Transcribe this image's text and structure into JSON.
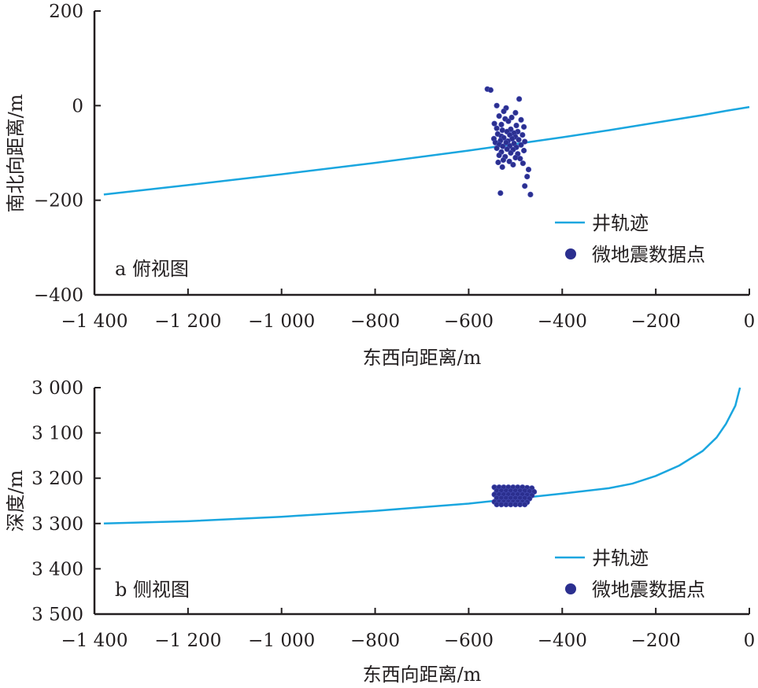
{
  "chart_data": [
    {
      "type": "scatter",
      "panel_label": "a 俯视图",
      "xlabel": "东西向距离/m",
      "ylabel": "南北向距离/m",
      "xlim": [
        -1400,
        0
      ],
      "ylim": [
        -400,
        200
      ],
      "y_inverted": false,
      "xticks": [
        -1400,
        -1200,
        -1000,
        -800,
        -600,
        -400,
        -200,
        0
      ],
      "xtick_labels": [
        "−1 400",
        "−1 200",
        "−1 000",
        "−800",
        "−600",
        "−400",
        "−200",
        "0"
      ],
      "yticks": [
        200,
        0,
        -200,
        -400
      ],
      "ytick_labels": [
        "200",
        "0",
        "−200",
        "−400"
      ],
      "legend": {
        "position": "bottom-right",
        "entries": [
          {
            "label": "井轨迹",
            "marker": "line",
            "color": "#1aa6df"
          },
          {
            "label": "微地震数据点",
            "marker": "dot",
            "color": "#2b2f8f"
          }
        ]
      },
      "series": [
        {
          "name": "井轨迹",
          "kind": "line",
          "color": "#1aa6df",
          "x": [
            -1380,
            -1200,
            -1000,
            -800,
            -600,
            -500,
            -400,
            -300,
            -200,
            -100,
            -50,
            0
          ],
          "y": [
            -188,
            -168,
            -145,
            -121,
            -95,
            -81,
            -67,
            -52,
            -36,
            -20,
            -11,
            -3
          ]
        },
        {
          "name": "微地震数据点",
          "kind": "scatter",
          "color": "#2b2f8f",
          "x": [
            -560,
            -553,
            -492,
            -540,
            -520,
            -525,
            -500,
            -535,
            -508,
            -522,
            -488,
            -515,
            -545,
            -530,
            -498,
            -482,
            -540,
            -510,
            -528,
            -495,
            -518,
            -503,
            -538,
            -512,
            -485,
            -530,
            -500,
            -525,
            -546,
            -507,
            -493,
            -532,
            -516,
            -480,
            -543,
            -520,
            -503,
            -535,
            -488,
            -512,
            -527,
            -498,
            -540,
            -518,
            -505,
            -482,
            -530,
            -510,
            -495,
            -535,
            -522,
            -500,
            -490,
            -526,
            -513,
            -537,
            -484,
            -505,
            -528,
            -532,
            -472,
            -475,
            -480,
            -468
          ],
          "y": [
            35,
            33,
            14,
            0,
            -5,
            -12,
            -15,
            -22,
            -25,
            -28,
            -30,
            -33,
            -38,
            -40,
            -42,
            -45,
            -48,
            -50,
            -52,
            -55,
            -55,
            -58,
            -60,
            -62,
            -62,
            -65,
            -66,
            -68,
            -70,
            -70,
            -72,
            -74,
            -75,
            -76,
            -78,
            -78,
            -80,
            -82,
            -83,
            -85,
            -86,
            -88,
            -90,
            -92,
            -93,
            -95,
            -98,
            -100,
            -102,
            -105,
            -108,
            -110,
            -112,
            -115,
            -118,
            -120,
            -122,
            -125,
            -130,
            -185,
            -135,
            -150,
            -170,
            -188
          ]
        }
      ]
    },
    {
      "type": "scatter",
      "panel_label": "b 侧视图",
      "xlabel": "东西向距离/m",
      "ylabel": "深度/m",
      "xlim": [
        -1400,
        0
      ],
      "ylim": [
        3500,
        3000
      ],
      "y_inverted": true,
      "xticks": [
        -1400,
        -1200,
        -1000,
        -800,
        -600,
        -400,
        -200,
        0
      ],
      "xtick_labels": [
        "−1 400",
        "−1 200",
        "−1 000",
        "−800",
        "−600",
        "−400",
        "−200",
        "0"
      ],
      "yticks": [
        3000,
        3100,
        3200,
        3300,
        3400,
        3500
      ],
      "ytick_labels": [
        "3 000",
        "3 100",
        "3 200",
        "3 300",
        "3 400",
        "3 500"
      ],
      "legend": {
        "position": "bottom-right",
        "entries": [
          {
            "label": "井轨迹",
            "marker": "line",
            "color": "#1aa6df"
          },
          {
            "label": "微地震数据点",
            "marker": "dot",
            "color": "#2b2f8f"
          }
        ]
      },
      "series": [
        {
          "name": "井轨迹",
          "kind": "line",
          "color": "#1aa6df",
          "x": [
            -1380,
            -1200,
            -1000,
            -800,
            -600,
            -500,
            -400,
            -300,
            -250,
            -200,
            -150,
            -100,
            -70,
            -50,
            -30,
            -20
          ],
          "y": [
            3300,
            3295,
            3285,
            3272,
            3256,
            3245,
            3234,
            3222,
            3212,
            3195,
            3172,
            3140,
            3110,
            3080,
            3040,
            3000
          ]
        },
        {
          "name": "微地震数据点",
          "kind": "scatter",
          "color": "#2b2f8f",
          "x": [
            -545,
            -535,
            -525,
            -515,
            -505,
            -495,
            -485,
            -475,
            -465,
            -540,
            -530,
            -520,
            -510,
            -500,
            -490,
            -480,
            -470,
            -460,
            -545,
            -535,
            -525,
            -515,
            -505,
            -495,
            -485,
            -475,
            -465,
            -540,
            -530,
            -520,
            -510,
            -500,
            -490,
            -480,
            -470,
            -545,
            -535,
            -525,
            -515,
            -505,
            -495,
            -485,
            -475,
            -540,
            -530,
            -520,
            -510,
            -500,
            -490,
            -480
          ],
          "y": [
            3220,
            3220,
            3220,
            3220,
            3220,
            3220,
            3220,
            3221,
            3222,
            3228,
            3228,
            3228,
            3228,
            3228,
            3228,
            3228,
            3229,
            3230,
            3236,
            3236,
            3236,
            3236,
            3236,
            3236,
            3236,
            3237,
            3238,
            3244,
            3244,
            3244,
            3244,
            3244,
            3244,
            3244,
            3245,
            3252,
            3252,
            3252,
            3252,
            3252,
            3252,
            3252,
            3253,
            3258,
            3258,
            3258,
            3258,
            3258,
            3258,
            3258
          ]
        }
      ]
    }
  ]
}
